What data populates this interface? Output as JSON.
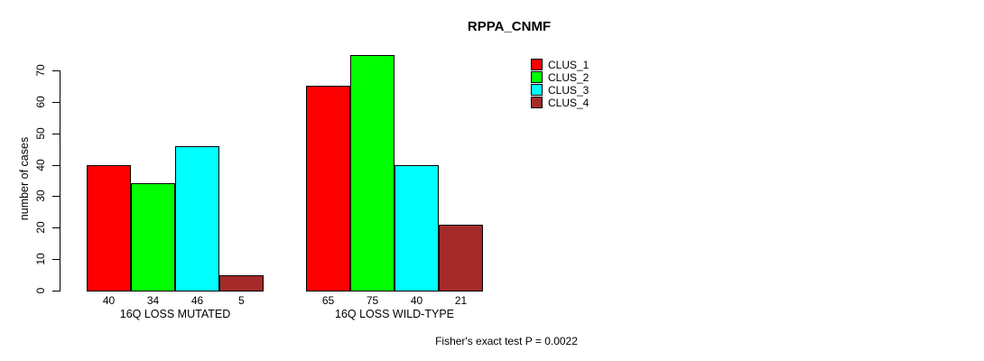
{
  "chart_data": {
    "type": "bar",
    "title": "RPPA_CNMF",
    "ylabel": "number of cases",
    "xlabel": "",
    "ylim": [
      0,
      70
    ],
    "yticks": [
      0,
      10,
      20,
      30,
      40,
      50,
      60,
      70
    ],
    "categories": [
      "16Q LOSS MUTATED",
      "16Q LOSS WILD-TYPE"
    ],
    "series": [
      {
        "name": "CLUS_1",
        "color": "#ff0000",
        "values": [
          40,
          65
        ]
      },
      {
        "name": "CLUS_2",
        "color": "#00ff00",
        "values": [
          34,
          75
        ]
      },
      {
        "name": "CLUS_3",
        "color": "#00ffff",
        "values": [
          46,
          40
        ]
      },
      {
        "name": "CLUS_4",
        "color": "#a52a2a",
        "values": [
          5,
          21
        ]
      }
    ],
    "bar_value_labels": [
      [
        40,
        34,
        46,
        5
      ],
      [
        65,
        75,
        40,
        21
      ]
    ],
    "annotation": "Fisher's exact test P = 0.0022",
    "legend_position": "top-right",
    "grid": false,
    "background": "#ffffff",
    "axis_color": "#000000"
  }
}
